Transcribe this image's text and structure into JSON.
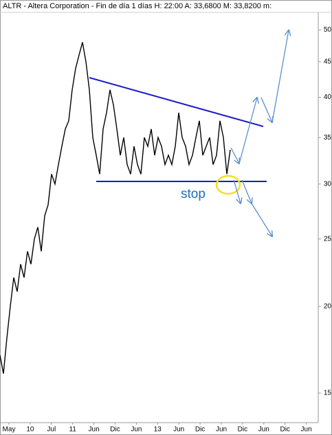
{
  "chart_data": {
    "type": "line",
    "title": "ALTR - Altera Corporation - Fin de día 1 días H: 22:00 A: 33,6800 M: 33,8200 m:",
    "annotation": "stop",
    "x_labels": [
      "May",
      "10",
      "Jul",
      "11",
      "Jun",
      "Dic",
      "Jun",
      "13",
      "Jun",
      "Dic",
      "Jun",
      "Dic",
      "Jun",
      "Dic",
      "Jun"
    ],
    "series": [
      {
        "color": "#000000",
        "values": [
          17,
          16,
          18,
          20,
          22,
          21,
          23,
          22,
          24,
          23,
          25,
          26,
          24,
          27,
          28,
          31,
          30,
          32,
          34,
          36,
          37,
          41,
          44,
          46,
          48,
          45,
          41,
          35,
          33,
          31,
          36,
          38,
          41,
          39,
          36,
          33,
          35,
          32,
          31,
          34,
          32,
          31,
          35,
          34,
          36,
          33,
          35,
          34,
          32,
          33,
          32,
          34,
          38,
          35,
          34,
          32,
          33,
          35,
          37,
          33,
          34,
          35,
          32,
          33,
          37,
          35,
          31,
          33.6
        ]
      }
    ],
    "ylim": [
      13.6,
      53
    ],
    "yticks": [
      15,
      20,
      25,
      30,
      35,
      40,
      45,
      50
    ],
    "log_scale": true
  }
}
